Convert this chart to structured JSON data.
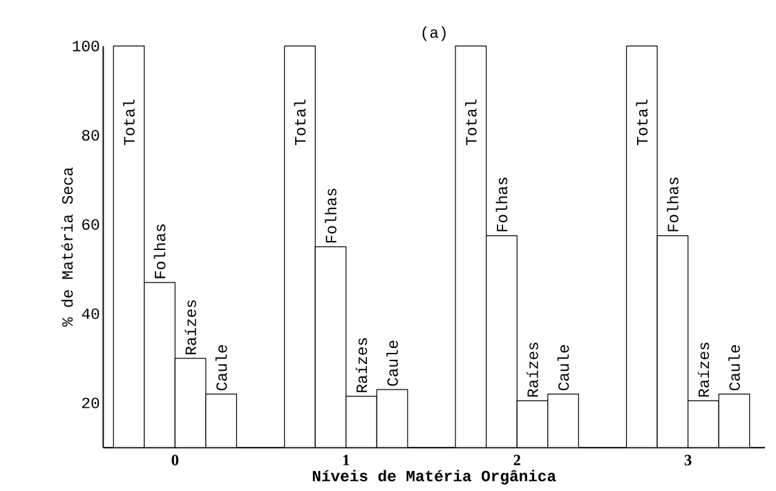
{
  "chart_data": {
    "type": "bar",
    "title": "(a)",
    "xlabel": "Níveis de Matéria Orgânica",
    "ylabel": "% de Matéria Seca",
    "categories": [
      "0",
      "1",
      "2",
      "3"
    ],
    "ylim": [
      10,
      100
    ],
    "yticks": [
      20,
      40,
      60,
      80,
      100
    ],
    "legend": false,
    "grid": false,
    "series": [
      {
        "name": "Total",
        "color": "#ffffff",
        "values": [
          100,
          100,
          100,
          100
        ]
      },
      {
        "name": "Folhas",
        "color": "#ffffff",
        "values": [
          47,
          55,
          57.5,
          57.5
        ]
      },
      {
        "name": "Raízes",
        "color": "#ffffff",
        "values": [
          30,
          21.5,
          20.5,
          20.5
        ]
      },
      {
        "name": "Caule",
        "color": "#ffffff",
        "values": [
          22,
          23,
          22,
          22
        ]
      }
    ]
  }
}
